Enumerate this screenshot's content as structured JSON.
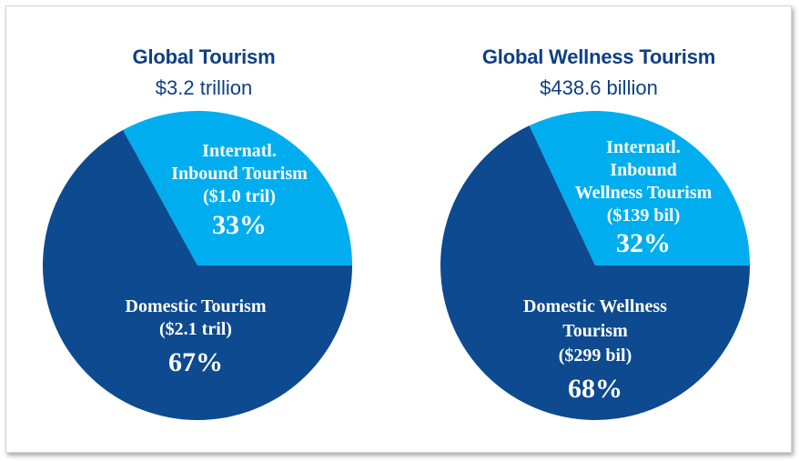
{
  "chart_data": [
    {
      "type": "pie",
      "title": "Global Tourism",
      "subtitle": "$3.2 trillion",
      "slices": [
        {
          "label_lines": [
            "Internatl.",
            "Inbound Tourism",
            "($1.0 tril)"
          ],
          "pct_label": "33%",
          "value": 33,
          "color": "#00aeef"
        },
        {
          "label_lines": [
            "Domestic Tourism",
            "($2.1 tril)"
          ],
          "pct_label": "67%",
          "value": 67,
          "color": "#0d4a8f"
        }
      ]
    },
    {
      "type": "pie",
      "title": "Global Wellness Tourism",
      "subtitle": "$438.6 billion",
      "slices": [
        {
          "label_lines": [
            "Internatl.",
            "Inbound",
            "Wellness Tourism",
            "($139 bil)"
          ],
          "pct_label": "32%",
          "value": 32,
          "color": "#00aeef"
        },
        {
          "label_lines": [
            "Domestic Wellness",
            "Tourism",
            "($299 bil)"
          ],
          "pct_label": "68%",
          "value": 68,
          "color": "#0d4a8f"
        }
      ]
    }
  ]
}
